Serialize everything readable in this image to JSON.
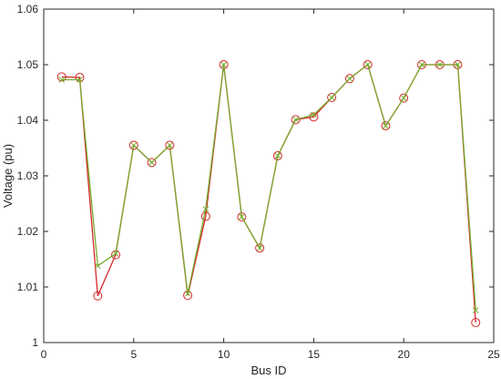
{
  "chart_data": {
    "type": "line",
    "xlabel": "Bus ID",
    "ylabel": "Voltage (pu)",
    "xlim": [
      0,
      25
    ],
    "ylim": [
      1.0,
      1.06
    ],
    "xticks": [
      "0",
      "5",
      "10",
      "15",
      "20",
      "25"
    ],
    "yticks": [
      "1",
      "1.01",
      "1.02",
      "1.03",
      "1.04",
      "1.05",
      "1.06"
    ],
    "grid": false,
    "legend": "none",
    "x": [
      1,
      2,
      3,
      4,
      5,
      6,
      7,
      8,
      9,
      10,
      11,
      12,
      13,
      14,
      15,
      16,
      17,
      18,
      19,
      20,
      21,
      22,
      23,
      24
    ],
    "series": [
      {
        "marker": "circle",
        "color": "#d62728",
        "values": [
          1.0478,
          1.0477,
          1.0084,
          1.0158,
          1.0355,
          1.0324,
          1.0355,
          1.0085,
          1.0227,
          1.05,
          1.0226,
          1.017,
          1.0336,
          1.0401,
          1.0406,
          1.0441,
          1.0475,
          1.05,
          1.039,
          1.044,
          1.05,
          1.05,
          1.05,
          1.0036
        ]
      },
      {
        "marker": "x",
        "color": "#77ac30",
        "values": [
          1.0473,
          1.0473,
          1.0138,
          1.016,
          1.0355,
          1.0324,
          1.0355,
          1.0088,
          1.024,
          1.05,
          1.0226,
          1.017,
          1.0336,
          1.0401,
          1.041,
          1.0441,
          1.0475,
          1.05,
          1.039,
          1.044,
          1.05,
          1.05,
          1.05,
          1.0058
        ]
      }
    ]
  }
}
